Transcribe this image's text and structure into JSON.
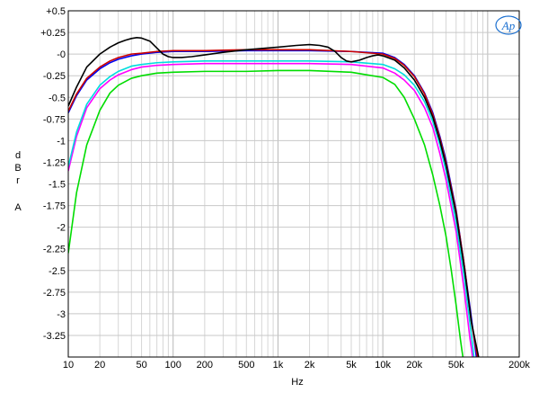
{
  "chart_data": {
    "type": "line",
    "x_scale": "log",
    "xlim": [
      10,
      200000
    ],
    "ylim": [
      -3.5,
      0.5
    ],
    "xlabel": "Hz",
    "ylabel_chars": [
      "d",
      "B",
      "r",
      "",
      "A"
    ],
    "grid": true,
    "logo": "Ap",
    "x_ticks": [
      {
        "v": 10,
        "label": "10"
      },
      {
        "v": 20,
        "label": "20"
      },
      {
        "v": 50,
        "label": "50"
      },
      {
        "v": 100,
        "label": "100"
      },
      {
        "v": 200,
        "label": "200"
      },
      {
        "v": 500,
        "label": "500"
      },
      {
        "v": 1000,
        "label": "1k"
      },
      {
        "v": 2000,
        "label": "2k"
      },
      {
        "v": 5000,
        "label": "5k"
      },
      {
        "v": 10000,
        "label": "10k"
      },
      {
        "v": 20000,
        "label": "20k"
      },
      {
        "v": 50000,
        "label": "50k"
      },
      {
        "v": 200000,
        "label": "200k"
      }
    ],
    "y_ticks": [
      {
        "v": 0.5,
        "label": "+0.5"
      },
      {
        "v": 0.25,
        "label": "+0.25"
      },
      {
        "v": 0,
        "label": "-0"
      },
      {
        "v": -0.25,
        "label": "-0.25"
      },
      {
        "v": -0.5,
        "label": "-0.5"
      },
      {
        "v": -0.75,
        "label": "-0.75"
      },
      {
        "v": -1,
        "label": "-1"
      },
      {
        "v": -1.25,
        "label": "-1.25"
      },
      {
        "v": -1.5,
        "label": "-1.5"
      },
      {
        "v": -1.75,
        "label": "-1.75"
      },
      {
        "v": -2,
        "label": "-2"
      },
      {
        "v": -2.25,
        "label": "-2.25"
      },
      {
        "v": -2.5,
        "label": "-2.5"
      },
      {
        "v": -2.75,
        "label": "-2.75"
      },
      {
        "v": -3,
        "label": "-3"
      },
      {
        "v": -3.25,
        "label": "-3.25"
      }
    ],
    "series": [
      {
        "color": "#00dd00",
        "points": [
          [
            10,
            -2.3
          ],
          [
            12,
            -1.6
          ],
          [
            15,
            -1.05
          ],
          [
            20,
            -0.65
          ],
          [
            25,
            -0.45
          ],
          [
            30,
            -0.36
          ],
          [
            40,
            -0.28
          ],
          [
            50,
            -0.25
          ],
          [
            70,
            -0.22
          ],
          [
            100,
            -0.21
          ],
          [
            200,
            -0.2
          ],
          [
            500,
            -0.2
          ],
          [
            1000,
            -0.19
          ],
          [
            2000,
            -0.19
          ],
          [
            5000,
            -0.21
          ],
          [
            7000,
            -0.24
          ],
          [
            10000,
            -0.27
          ],
          [
            13000,
            -0.35
          ],
          [
            16000,
            -0.5
          ],
          [
            20000,
            -0.75
          ],
          [
            25000,
            -1.05
          ],
          [
            30000,
            -1.4
          ],
          [
            35000,
            -1.75
          ],
          [
            40000,
            -2.1
          ],
          [
            45000,
            -2.5
          ],
          [
            50000,
            -2.9
          ],
          [
            55000,
            -3.3
          ],
          [
            58000,
            -3.5
          ]
        ]
      },
      {
        "color": "#ff00ff",
        "points": [
          [
            10,
            -1.35
          ],
          [
            12,
            -0.95
          ],
          [
            15,
            -0.62
          ],
          [
            20,
            -0.4
          ],
          [
            25,
            -0.3
          ],
          [
            30,
            -0.24
          ],
          [
            40,
            -0.18
          ],
          [
            50,
            -0.15
          ],
          [
            70,
            -0.13
          ],
          [
            100,
            -0.12
          ],
          [
            200,
            -0.11
          ],
          [
            500,
            -0.11
          ],
          [
            1000,
            -0.11
          ],
          [
            2000,
            -0.11
          ],
          [
            5000,
            -0.12
          ],
          [
            10000,
            -0.16
          ],
          [
            13000,
            -0.22
          ],
          [
            16000,
            -0.3
          ],
          [
            20000,
            -0.42
          ],
          [
            25000,
            -0.62
          ],
          [
            30000,
            -0.85
          ],
          [
            35000,
            -1.15
          ],
          [
            40000,
            -1.45
          ],
          [
            50000,
            -2.05
          ],
          [
            60000,
            -2.75
          ],
          [
            68000,
            -3.3
          ],
          [
            72000,
            -3.5
          ]
        ]
      },
      {
        "color": "#00dddd",
        "points": [
          [
            10,
            -1.3
          ],
          [
            12,
            -0.9
          ],
          [
            15,
            -0.58
          ],
          [
            20,
            -0.36
          ],
          [
            25,
            -0.26
          ],
          [
            30,
            -0.2
          ],
          [
            40,
            -0.14
          ],
          [
            50,
            -0.12
          ],
          [
            70,
            -0.1
          ],
          [
            100,
            -0.09
          ],
          [
            200,
            -0.08
          ],
          [
            500,
            -0.08
          ],
          [
            1000,
            -0.08
          ],
          [
            2000,
            -0.08
          ],
          [
            5000,
            -0.09
          ],
          [
            10000,
            -0.12
          ],
          [
            13000,
            -0.17
          ],
          [
            16000,
            -0.24
          ],
          [
            20000,
            -0.36
          ],
          [
            25000,
            -0.55
          ],
          [
            30000,
            -0.78
          ],
          [
            35000,
            -1.05
          ],
          [
            40000,
            -1.35
          ],
          [
            50000,
            -1.95
          ],
          [
            60000,
            -2.6
          ],
          [
            70000,
            -3.25
          ],
          [
            74000,
            -3.5
          ]
        ]
      },
      {
        "color": "#0000ee",
        "points": [
          [
            10,
            -0.68
          ],
          [
            12,
            -0.48
          ],
          [
            15,
            -0.3
          ],
          [
            20,
            -0.17
          ],
          [
            25,
            -0.1
          ],
          [
            30,
            -0.06
          ],
          [
            40,
            -0.02
          ],
          [
            50,
            0
          ],
          [
            70,
            0.02
          ],
          [
            100,
            0.03
          ],
          [
            200,
            0.03
          ],
          [
            500,
            0.04
          ],
          [
            1000,
            0.04
          ],
          [
            2000,
            0.04
          ],
          [
            5000,
            0.03
          ],
          [
            10000,
            0.01
          ],
          [
            13000,
            -0.04
          ],
          [
            16000,
            -0.12
          ],
          [
            20000,
            -0.25
          ],
          [
            25000,
            -0.45
          ],
          [
            30000,
            -0.68
          ],
          [
            35000,
            -0.95
          ],
          [
            40000,
            -1.22
          ],
          [
            50000,
            -1.8
          ],
          [
            60000,
            -2.45
          ],
          [
            70000,
            -3.05
          ],
          [
            78000,
            -3.5
          ]
        ]
      },
      {
        "color": "#cc0000",
        "points": [
          [
            10,
            -0.66
          ],
          [
            12,
            -0.46
          ],
          [
            15,
            -0.28
          ],
          [
            20,
            -0.15
          ],
          [
            25,
            -0.08
          ],
          [
            30,
            -0.04
          ],
          [
            40,
            0
          ],
          [
            50,
            0.01
          ],
          [
            70,
            0.03
          ],
          [
            100,
            0.04
          ],
          [
            200,
            0.04
          ],
          [
            500,
            0.05
          ],
          [
            1000,
            0.05
          ],
          [
            2000,
            0.05
          ],
          [
            5000,
            0.03
          ],
          [
            10000,
            0
          ],
          [
            13000,
            -0.05
          ],
          [
            16000,
            -0.13
          ],
          [
            20000,
            -0.26
          ],
          [
            25000,
            -0.46
          ],
          [
            30000,
            -0.7
          ],
          [
            35000,
            -0.97
          ],
          [
            40000,
            -1.25
          ],
          [
            50000,
            -1.82
          ],
          [
            60000,
            -2.45
          ],
          [
            70000,
            -3.1
          ],
          [
            80000,
            -3.5
          ]
        ]
      },
      {
        "color": "#000000",
        "points": [
          [
            10,
            -0.6
          ],
          [
            12,
            -0.38
          ],
          [
            15,
            -0.15
          ],
          [
            20,
            0
          ],
          [
            25,
            0.08
          ],
          [
            30,
            0.13
          ],
          [
            35,
            0.16
          ],
          [
            40,
            0.18
          ],
          [
            45,
            0.19
          ],
          [
            50,
            0.185
          ],
          [
            60,
            0.15
          ],
          [
            70,
            0.07
          ],
          [
            80,
            0
          ],
          [
            90,
            -0.03
          ],
          [
            100,
            -0.04
          ],
          [
            120,
            -0.04
          ],
          [
            150,
            -0.03
          ],
          [
            200,
            -0.01
          ],
          [
            300,
            0.02
          ],
          [
            500,
            0.05
          ],
          [
            1000,
            0.08
          ],
          [
            1500,
            0.1
          ],
          [
            2000,
            0.11
          ],
          [
            2500,
            0.1
          ],
          [
            3000,
            0.08
          ],
          [
            3500,
            0.03
          ],
          [
            4000,
            -0.04
          ],
          [
            4500,
            -0.08
          ],
          [
            5000,
            -0.09
          ],
          [
            6000,
            -0.07
          ],
          [
            7000,
            -0.04
          ],
          [
            8000,
            -0.02
          ],
          [
            9000,
            -0.01
          ],
          [
            10000,
            -0.02
          ],
          [
            13000,
            -0.07
          ],
          [
            16000,
            -0.16
          ],
          [
            20000,
            -0.3
          ],
          [
            25000,
            -0.5
          ],
          [
            30000,
            -0.73
          ],
          [
            35000,
            -1.0
          ],
          [
            40000,
            -1.28
          ],
          [
            50000,
            -1.85
          ],
          [
            60000,
            -2.48
          ],
          [
            70000,
            -3.1
          ],
          [
            82000,
            -3.5
          ]
        ]
      }
    ]
  }
}
